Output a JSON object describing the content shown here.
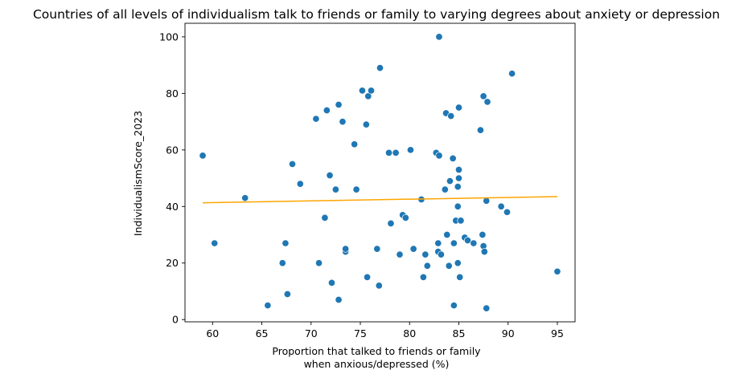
{
  "chart_data": {
    "type": "scatter",
    "title": "Countries of all levels of individualism talk to friends or family to varying degrees about anxiety or depression",
    "xlabel_lines": [
      "Proportion that talked to friends or family",
      "when anxious/depressed (%)"
    ],
    "ylabel": "IndividualismScore_2023",
    "xlim": [
      57.2,
      96.8
    ],
    "ylim": [
      -0.8,
      104.8
    ],
    "xticks": [
      60,
      65,
      70,
      75,
      80,
      85,
      90,
      95
    ],
    "yticks": [
      0,
      20,
      40,
      60,
      80,
      100
    ],
    "grid": false,
    "colors": {
      "points": "#1f77b4",
      "trend": "#ffa500"
    },
    "trend": {
      "x": [
        59,
        95
      ],
      "y": [
        41.3,
        43.5
      ]
    },
    "points": [
      [
        59,
        58
      ],
      [
        60.2,
        27
      ],
      [
        63.3,
        43
      ],
      [
        65.6,
        5
      ],
      [
        67.1,
        20
      ],
      [
        67.4,
        27
      ],
      [
        67.6,
        9
      ],
      [
        68.1,
        55
      ],
      [
        68.9,
        48
      ],
      [
        70.5,
        71
      ],
      [
        70.8,
        20
      ],
      [
        71.4,
        36
      ],
      [
        71.6,
        74
      ],
      [
        71.9,
        51
      ],
      [
        72.1,
        13
      ],
      [
        72.5,
        46
      ],
      [
        72.8,
        76
      ],
      [
        72.8,
        7
      ],
      [
        73.2,
        70
      ],
      [
        73.5,
        24
      ],
      [
        73.5,
        25
      ],
      [
        74.4,
        62
      ],
      [
        74.6,
        46
      ],
      [
        75.2,
        81
      ],
      [
        75.6,
        69
      ],
      [
        75.7,
        15
      ],
      [
        75.8,
        79
      ],
      [
        76.1,
        81
      ],
      [
        76.7,
        25
      ],
      [
        76.9,
        12
      ],
      [
        77,
        89
      ],
      [
        77.9,
        59
      ],
      [
        78.1,
        34
      ],
      [
        78.6,
        59
      ],
      [
        79,
        23
      ],
      [
        79.3,
        37
      ],
      [
        79.6,
        36
      ],
      [
        80.1,
        60
      ],
      [
        80.4,
        25
      ],
      [
        81.2,
        42.5
      ],
      [
        81.4,
        15
      ],
      [
        81.6,
        23
      ],
      [
        81.8,
        19
      ],
      [
        82.7,
        59
      ],
      [
        82.9,
        24
      ],
      [
        82.9,
        27
      ],
      [
        83,
        100
      ],
      [
        83,
        58
      ],
      [
        83.2,
        23
      ],
      [
        83.6,
        46
      ],
      [
        83.7,
        73
      ],
      [
        83.8,
        30
      ],
      [
        84,
        19
      ],
      [
        84.1,
        49
      ],
      [
        84.2,
        72
      ],
      [
        84.4,
        57
      ],
      [
        84.5,
        27
      ],
      [
        84.5,
        5
      ],
      [
        84.7,
        35
      ],
      [
        84.9,
        20
      ],
      [
        84.9,
        47
      ],
      [
        84.9,
        40
      ],
      [
        85,
        75
      ],
      [
        85,
        53
      ],
      [
        85,
        50
      ],
      [
        85.1,
        15
      ],
      [
        85.2,
        35
      ],
      [
        85.6,
        29
      ],
      [
        85.9,
        28
      ],
      [
        86.5,
        27
      ],
      [
        87.2,
        67
      ],
      [
        87.4,
        30
      ],
      [
        87.5,
        79
      ],
      [
        87.5,
        26
      ],
      [
        87.6,
        24
      ],
      [
        87.8,
        42
      ],
      [
        87.9,
        77
      ],
      [
        87.8,
        4
      ],
      [
        89.3,
        40
      ],
      [
        89.9,
        38
      ],
      [
        90.4,
        87
      ],
      [
        95,
        17
      ]
    ]
  }
}
